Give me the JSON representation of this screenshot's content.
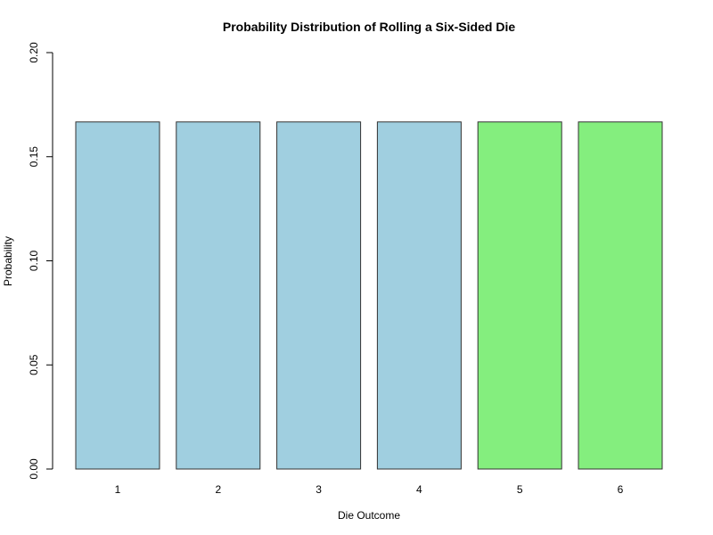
{
  "chart_data": {
    "type": "bar",
    "title": "Probability Distribution of Rolling a Six-Sided Die",
    "xlabel": "Die Outcome",
    "ylabel": "Probability",
    "categories": [
      "1",
      "2",
      "3",
      "4",
      "5",
      "6"
    ],
    "values": [
      0.1667,
      0.1667,
      0.1667,
      0.1667,
      0.1667,
      0.1667
    ],
    "bar_colors": [
      "#a0cfe0",
      "#a0cfe0",
      "#a0cfe0",
      "#a0cfe0",
      "#84ee7e",
      "#84ee7e"
    ],
    "ylim": [
      0,
      0.2
    ],
    "yticks": [
      0,
      0.05,
      0.1,
      0.15,
      0.2
    ],
    "ytick_labels": [
      "0.00",
      "0.05",
      "0.10",
      "0.15",
      "0.20"
    ],
    "grid": false,
    "legend": "none"
  }
}
